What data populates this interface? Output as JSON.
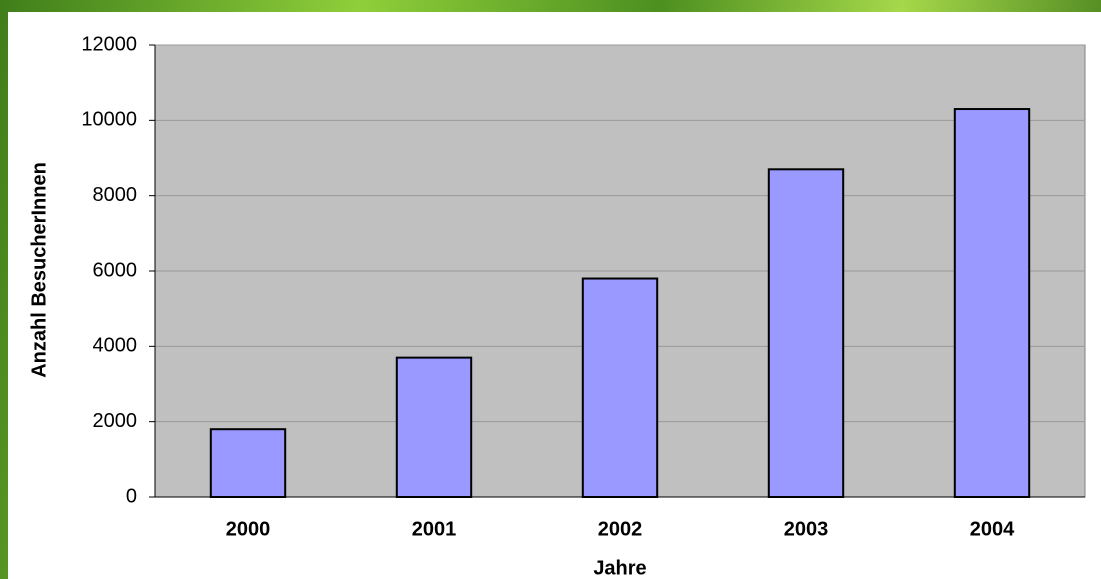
{
  "chart_data": {
    "type": "bar",
    "x_label": "Jahre",
    "y_label": "Anzahl BesucherInnen",
    "categories": [
      "2000",
      "2001",
      "2002",
      "2003",
      "2004"
    ],
    "values": [
      1800,
      3700,
      5800,
      8700,
      10300
    ],
    "color": "#9999ff",
    "ylim": [
      0,
      12000
    ],
    "yticks": [
      0,
      2000,
      4000,
      6000,
      8000,
      10000,
      12000
    ],
    "grid": true
  }
}
